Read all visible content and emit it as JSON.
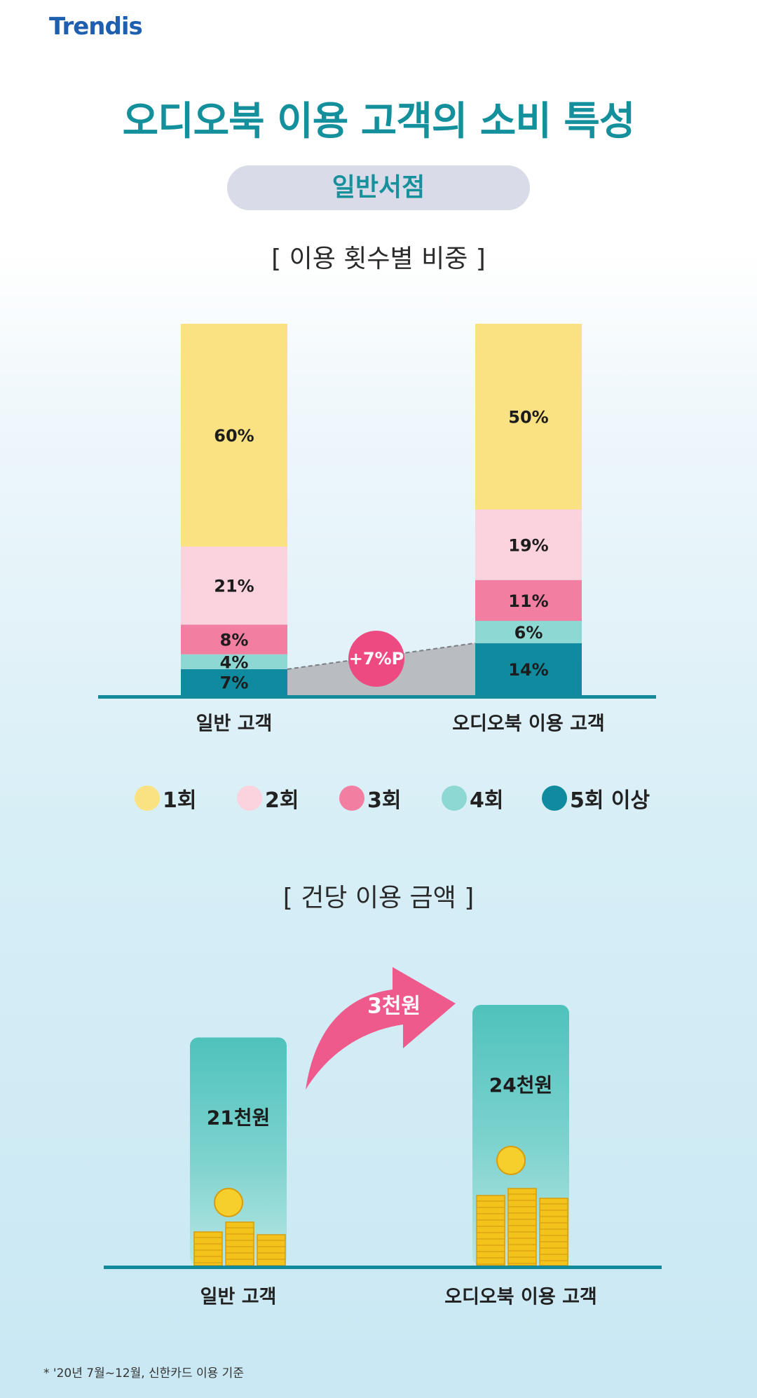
{
  "logo": "Trendis",
  "title": "오디오북 이용 고객의 소비 특성",
  "category_pill": "일반서점",
  "section1_title": "[ 이용 횟수별 비중 ]",
  "section2_title": "[ 건당 이용 금액 ]",
  "footnote": "* '20년 7월~12월, 신한카드 이용 기준",
  "colors": {
    "teal_title": "#14909d",
    "once": "#fae282",
    "twice": "#fad3df",
    "three": "#f27fa2",
    "four": "#8ed8d4",
    "five_plus": "#0f8a9e",
    "diff_badge": "#ee4a82",
    "amount_bar": "#5ec8c3"
  },
  "chart_data": [
    {
      "type": "bar",
      "stacked": true,
      "categories": [
        "일반 고객",
        "오디오북 이용 고객"
      ],
      "series": [
        {
          "name": "1회",
          "values": [
            60,
            50
          ],
          "labels": [
            "60%",
            "50%"
          ]
        },
        {
          "name": "2회",
          "values": [
            21,
            19
          ],
          "labels": [
            "21%",
            "19%"
          ]
        },
        {
          "name": "3회",
          "values": [
            8,
            11
          ],
          "labels": [
            "8%",
            "11%"
          ]
        },
        {
          "name": "4회",
          "values": [
            4,
            6
          ],
          "labels": [
            "4%",
            "6%"
          ]
        },
        {
          "name": "5회 이상",
          "values": [
            7,
            14
          ],
          "labels": [
            "7%",
            "14%"
          ]
        }
      ],
      "annotation": "+7%P",
      "ylim": [
        0,
        100
      ],
      "legend_position": "bottom"
    },
    {
      "type": "bar",
      "categories": [
        "일반 고객",
        "오디오북 이용 고객"
      ],
      "values": [
        21,
        24
      ],
      "labels": [
        "21천원",
        "24천원"
      ],
      "annotation": "3천원"
    }
  ]
}
